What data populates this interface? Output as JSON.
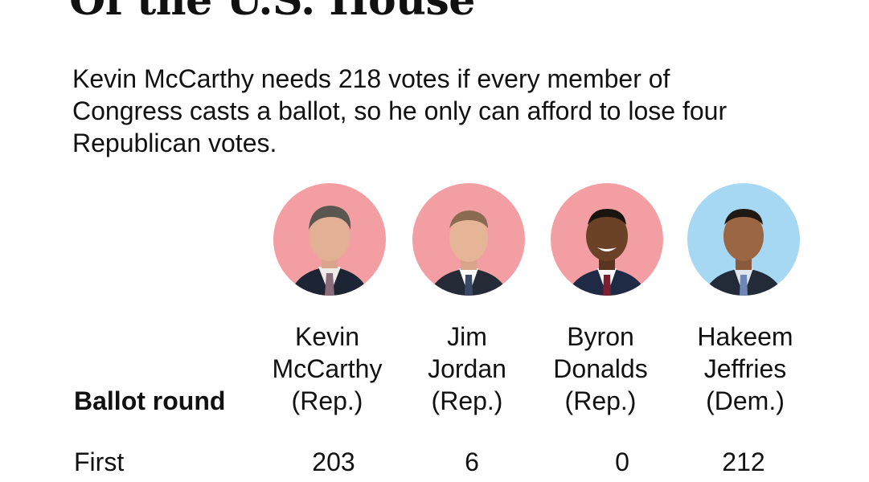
{
  "headline_tail": "Of the U.S. House",
  "description": "Kevin McCarthy needs 218 votes if every member of Congress casts a ballot, so he only can afford to lose four Republican votes.",
  "colors": {
    "republican": "#f39ea2",
    "democrat": "#a6d8f3",
    "text": "#111111"
  },
  "chart_data": {
    "type": "table",
    "row_header_label": "Ballot round",
    "candidates": [
      {
        "first": "Kevin",
        "last": "McCarthy",
        "party": "(Rep.)",
        "party_color": "republican"
      },
      {
        "first": "Jim",
        "last": "Jordan",
        "party": "(Rep.)",
        "party_color": "republican"
      },
      {
        "first": "Byron",
        "last": "Donalds",
        "party": "(Rep.)",
        "party_color": "republican"
      },
      {
        "first": "Hakeem",
        "last": "Jeffries",
        "party": "(Dem.)",
        "party_color": "democrat"
      }
    ],
    "rounds": [
      {
        "label": "First",
        "votes": [
          "203",
          "6",
          "0",
          "212"
        ]
      }
    ]
  }
}
